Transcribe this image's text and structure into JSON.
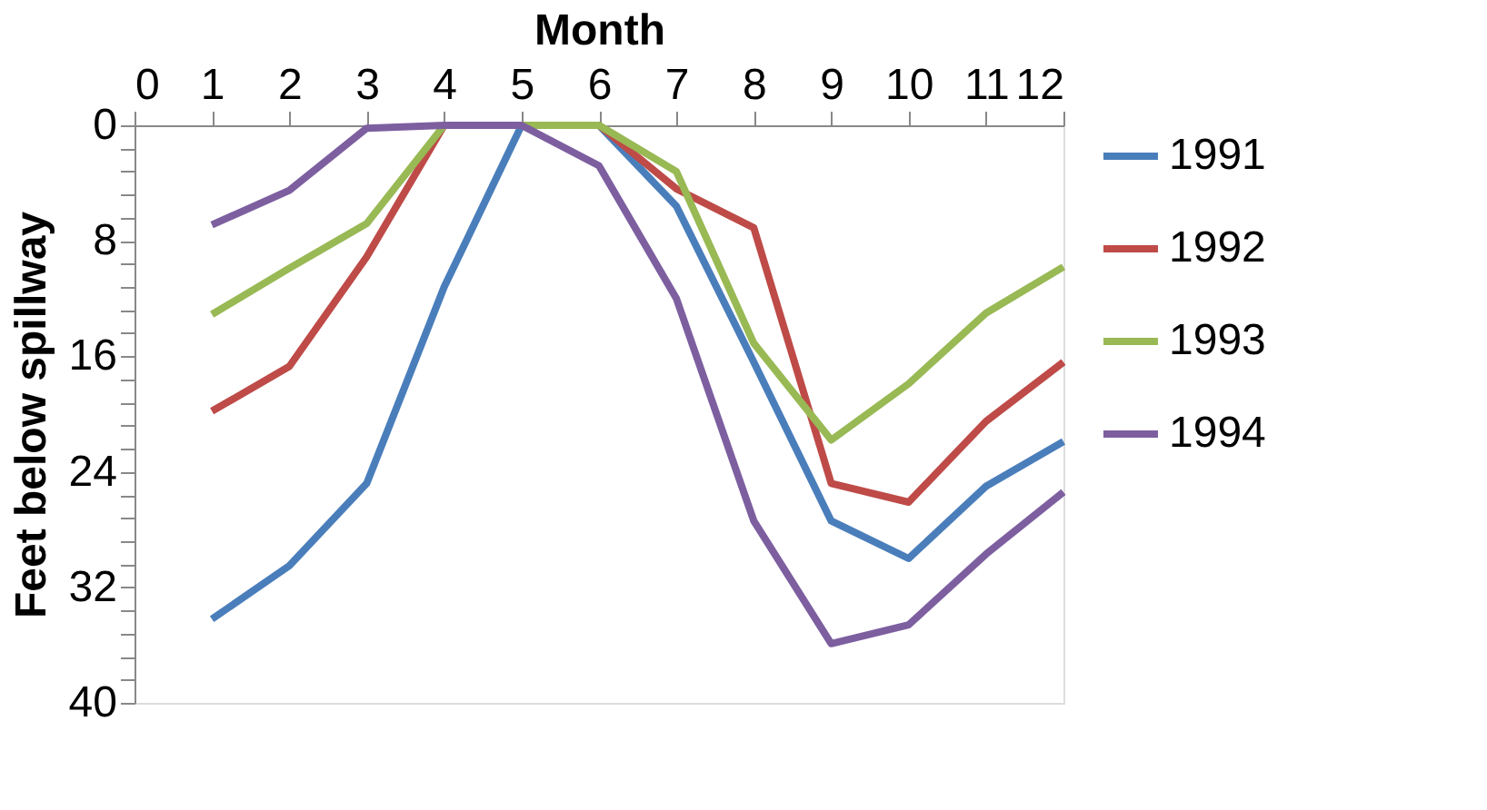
{
  "chart_data": {
    "type": "line",
    "xlabel": "Month",
    "ylabel": "Feet below spillway",
    "x": [
      1,
      2,
      3,
      4,
      5,
      6,
      7,
      8,
      9,
      10,
      11,
      12
    ],
    "xlim": [
      0,
      12
    ],
    "xticks": [
      0,
      1,
      2,
      3,
      4,
      5,
      6,
      7,
      8,
      9,
      10,
      11,
      12
    ],
    "ylim": [
      40,
      0
    ],
    "yticks": [
      0,
      {
        "value": 1.6,
        "label": null
      },
      {
        "value": 3.2,
        "label": null
      },
      {
        "value": 4.8,
        "label": null
      },
      {
        "value": 6.4,
        "label": null
      },
      8,
      {
        "value": 9.6,
        "label": null
      },
      {
        "value": 11.2,
        "label": null
      },
      {
        "value": 12.8,
        "label": null
      },
      {
        "value": 14.4,
        "label": null
      },
      16,
      {
        "value": 17.6,
        "label": null
      },
      {
        "value": 19.2,
        "label": null
      },
      {
        "value": 20.8,
        "label": null
      },
      {
        "value": 22.4,
        "label": null
      },
      24,
      {
        "value": 25.6,
        "label": null
      },
      {
        "value": 27.2,
        "label": null
      },
      {
        "value": 28.8,
        "label": null
      },
      {
        "value": 30.4,
        "label": null
      },
      32,
      {
        "value": 33.6,
        "label": null
      },
      {
        "value": 35.2,
        "label": null
      },
      {
        "value": 36.8,
        "label": null
      },
      {
        "value": 38.4,
        "label": null
      },
      40
    ],
    "grid": false,
    "legend": "right",
    "marker": "none",
    "line_style": "solid",
    "series": [
      {
        "name": "1991",
        "color": "#4a7ebb",
        "values": [
          34.2,
          30.5,
          24.8,
          11.2,
          0,
          0,
          5.6,
          16.4,
          27.4,
          30.0,
          25.0,
          21.9
        ]
      },
      {
        "name": "1992",
        "color": "#be4b48",
        "values": [
          19.8,
          16.7,
          9.1,
          0,
          0,
          0,
          4.4,
          7.1,
          24.8,
          26.1,
          20.5,
          16.4
        ]
      },
      {
        "name": "1993",
        "color": "#98b954",
        "values": [
          13.1,
          9.9,
          6.8,
          0,
          0,
          0,
          3.2,
          15.1,
          21.8,
          17.9,
          13.0,
          9.8
        ]
      },
      {
        "name": "1994",
        "color": "#7d5fa0",
        "values": [
          6.9,
          4.5,
          0.2,
          0,
          0,
          2.8,
          12.0,
          27.4,
          35.9,
          34.6,
          29.7,
          25.4
        ]
      }
    ]
  }
}
